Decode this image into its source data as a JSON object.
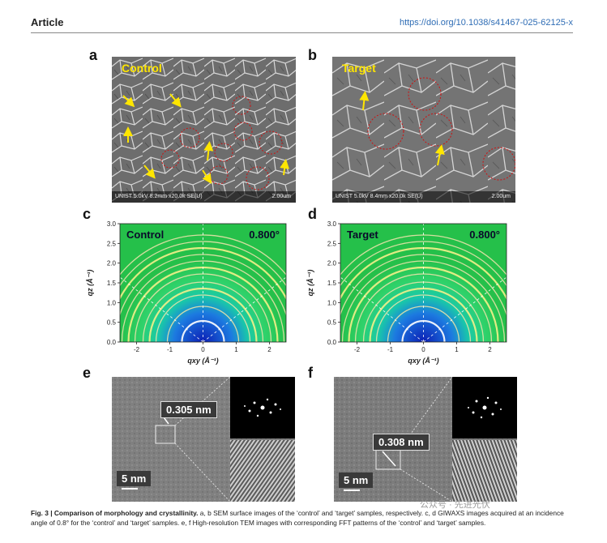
{
  "header": {
    "left": "Article",
    "right": "https://doi.org/10.1038/s41467-025-62125-x"
  },
  "panels": {
    "a": {
      "label": "a",
      "title": "Control",
      "footer": "UNIST 5.0kV 8.2mm x20.0k SE(U)",
      "scale": "2.00um"
    },
    "b": {
      "label": "b",
      "title": "Target",
      "footer": "UNIST 5.0kV 8.4mm x20.0k SE(U)",
      "scale": "2.00um"
    },
    "c": {
      "label": "c",
      "title": "Control",
      "angle": "0.800°"
    },
    "d": {
      "label": "d",
      "title": "Target",
      "angle": "0.800°"
    },
    "e": {
      "label": "e",
      "measure": "0.305 nm",
      "scale": "5 nm"
    },
    "f": {
      "label": "f",
      "measure": "0.308 nm",
      "scale": "5 nm"
    }
  },
  "giwaxs_axes": {
    "ylabel": "qz (Å⁻¹)",
    "xlabel": "qxy (Å⁻¹)",
    "yticks": [
      "3.0",
      "2.5",
      "2.0",
      "1.5",
      "1.0",
      "0.5",
      "0.0"
    ],
    "xticks": [
      "-2",
      "-1",
      "0",
      "1",
      "2"
    ]
  },
  "caption": {
    "fig": "Fig. 3 | Comparison of morphology and crystallinity.",
    "text": " a, b SEM surface images of the ‘control’ and ‘target’ samples, respectively. c, d GIWAXS images acquired at an incidence angle of 0.8° for the ‘control’ and ‘target’ samples. e, f High-resolution TEM images with corresponding FFT patterns of the ‘control’ and ‘target’ samples."
  },
  "watermark": "公众号 · 先进光伏",
  "colors": {
    "highlight": "#ffe600",
    "link": "#2f6db5",
    "circle": "#d01010"
  }
}
